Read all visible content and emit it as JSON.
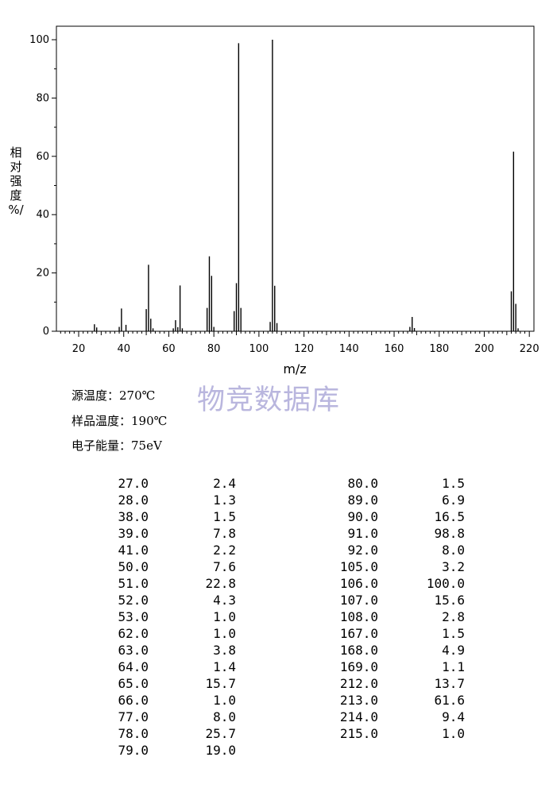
{
  "chart_data": {
    "type": "bar",
    "xlabel": "m/z",
    "ylabel": [
      "相",
      "对",
      "强",
      "度",
      "%/"
    ],
    "xlim": [
      10,
      222
    ],
    "ylim": [
      0,
      105
    ],
    "xticks": [
      20,
      40,
      60,
      80,
      100,
      120,
      140,
      160,
      180,
      200,
      220
    ],
    "yticks": [
      0,
      20,
      40,
      60,
      80,
      100
    ],
    "grid": false,
    "peaks": [
      {
        "mz": 27.0,
        "intensity": 2.4
      },
      {
        "mz": 28.0,
        "intensity": 1.3
      },
      {
        "mz": 38.0,
        "intensity": 1.5
      },
      {
        "mz": 39.0,
        "intensity": 7.8
      },
      {
        "mz": 41.0,
        "intensity": 2.2
      },
      {
        "mz": 50.0,
        "intensity": 7.6
      },
      {
        "mz": 51.0,
        "intensity": 22.8
      },
      {
        "mz": 52.0,
        "intensity": 4.3
      },
      {
        "mz": 53.0,
        "intensity": 1.0
      },
      {
        "mz": 62.0,
        "intensity": 1.0
      },
      {
        "mz": 63.0,
        "intensity": 3.8
      },
      {
        "mz": 64.0,
        "intensity": 1.4
      },
      {
        "mz": 65.0,
        "intensity": 15.7
      },
      {
        "mz": 66.0,
        "intensity": 1.0
      },
      {
        "mz": 77.0,
        "intensity": 8.0
      },
      {
        "mz": 78.0,
        "intensity": 25.7
      },
      {
        "mz": 79.0,
        "intensity": 19.0
      },
      {
        "mz": 80.0,
        "intensity": 1.5
      },
      {
        "mz": 89.0,
        "intensity": 6.9
      },
      {
        "mz": 90.0,
        "intensity": 16.5
      },
      {
        "mz": 91.0,
        "intensity": 98.8
      },
      {
        "mz": 92.0,
        "intensity": 8.0
      },
      {
        "mz": 105.0,
        "intensity": 3.2
      },
      {
        "mz": 106.0,
        "intensity": 100.0
      },
      {
        "mz": 107.0,
        "intensity": 15.6
      },
      {
        "mz": 108.0,
        "intensity": 2.8
      },
      {
        "mz": 167.0,
        "intensity": 1.5
      },
      {
        "mz": 168.0,
        "intensity": 4.9
      },
      {
        "mz": 169.0,
        "intensity": 1.1
      },
      {
        "mz": 212.0,
        "intensity": 13.7
      },
      {
        "mz": 213.0,
        "intensity": 61.6
      },
      {
        "mz": 214.0,
        "intensity": 9.4
      },
      {
        "mz": 215.0,
        "intensity": 1.0
      }
    ]
  },
  "watermark": "物竞数据库",
  "conditions": {
    "source_temp": "源温度：270℃",
    "sample_temp": "样品温度：190℃",
    "electron_energy": "电子能量：75eV"
  },
  "peak_table": {
    "left": [
      [
        "27.0",
        "2.4"
      ],
      [
        "28.0",
        "1.3"
      ],
      [
        "38.0",
        "1.5"
      ],
      [
        "39.0",
        "7.8"
      ],
      [
        "41.0",
        "2.2"
      ],
      [
        "50.0",
        "7.6"
      ],
      [
        "51.0",
        "22.8"
      ],
      [
        "52.0",
        "4.3"
      ],
      [
        "53.0",
        "1.0"
      ],
      [
        "62.0",
        "1.0"
      ],
      [
        "63.0",
        "3.8"
      ],
      [
        "64.0",
        "1.4"
      ],
      [
        "65.0",
        "15.7"
      ],
      [
        "66.0",
        "1.0"
      ],
      [
        "77.0",
        "8.0"
      ],
      [
        "78.0",
        "25.7"
      ],
      [
        "79.0",
        "19.0"
      ]
    ],
    "right": [
      [
        "80.0",
        "1.5"
      ],
      [
        "89.0",
        "6.9"
      ],
      [
        "90.0",
        "16.5"
      ],
      [
        "91.0",
        "98.8"
      ],
      [
        "92.0",
        "8.0"
      ],
      [
        "105.0",
        "3.2"
      ],
      [
        "106.0",
        "100.0"
      ],
      [
        "107.0",
        "15.6"
      ],
      [
        "108.0",
        "2.8"
      ],
      [
        "167.0",
        "1.5"
      ],
      [
        "168.0",
        "4.9"
      ],
      [
        "169.0",
        "1.1"
      ],
      [
        "212.0",
        "13.7"
      ],
      [
        "213.0",
        "61.6"
      ],
      [
        "214.0",
        "9.4"
      ],
      [
        "215.0",
        "1.0"
      ]
    ]
  }
}
